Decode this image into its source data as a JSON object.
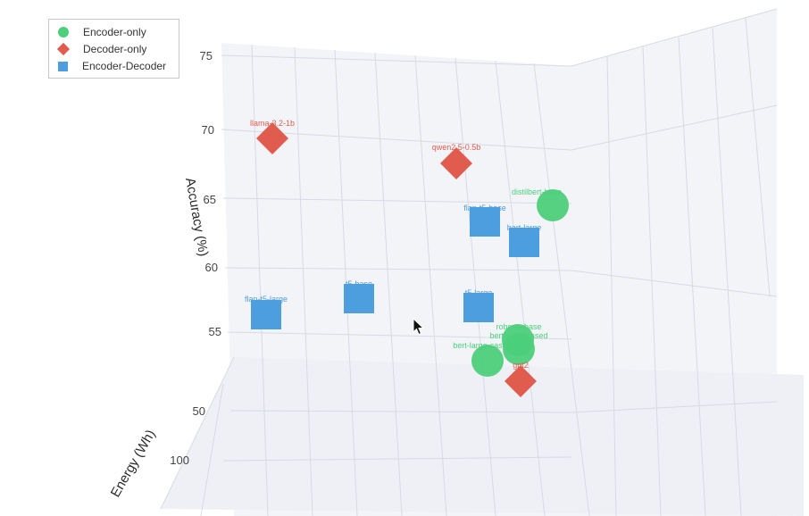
{
  "chart_data": {
    "type": "scatter",
    "title": "",
    "axes": {
      "z": {
        "title": "Accuracy (%)",
        "ticks": [
          "75",
          "70",
          "65",
          "60",
          "55",
          "50"
        ]
      },
      "energy": {
        "title": "Energy (Wh)",
        "ticks": [
          "100"
        ]
      }
    },
    "legend_position": "top-left",
    "series": [
      {
        "name": "Encoder-only",
        "color": "#4ccf7a",
        "marker": "circle",
        "points": [
          {
            "label": "distilbert-base",
            "accuracy": 64.5
          },
          {
            "label": "roberta-base",
            "accuracy": 54.8
          },
          {
            "label": "bert-base-cased",
            "accuracy": 54.2
          },
          {
            "label": "bert-large-cased",
            "accuracy": 53.3
          }
        ]
      },
      {
        "name": "Decoder-only",
        "color": "#e05c4e",
        "marker": "diamond",
        "points": [
          {
            "label": "llama-3.2-1b",
            "accuracy": 69.5
          },
          {
            "label": "qwen2.5-0.5b",
            "accuracy": 67.6
          },
          {
            "label": "gpt2",
            "accuracy": 51.8
          }
        ]
      },
      {
        "name": "Encoder-Decoder",
        "color": "#4d9ede",
        "marker": "square",
        "points": [
          {
            "label": "flan-t5-base",
            "accuracy": 63.4
          },
          {
            "label": "bart-large",
            "accuracy": 61.8
          },
          {
            "label": "flan-t5-large",
            "accuracy": 56.2
          },
          {
            "label": "t5-base",
            "accuracy": 57.7
          },
          {
            "label": "t5-large",
            "accuracy": 56.8
          }
        ]
      }
    ]
  },
  "cursor": "arrow-pointer"
}
